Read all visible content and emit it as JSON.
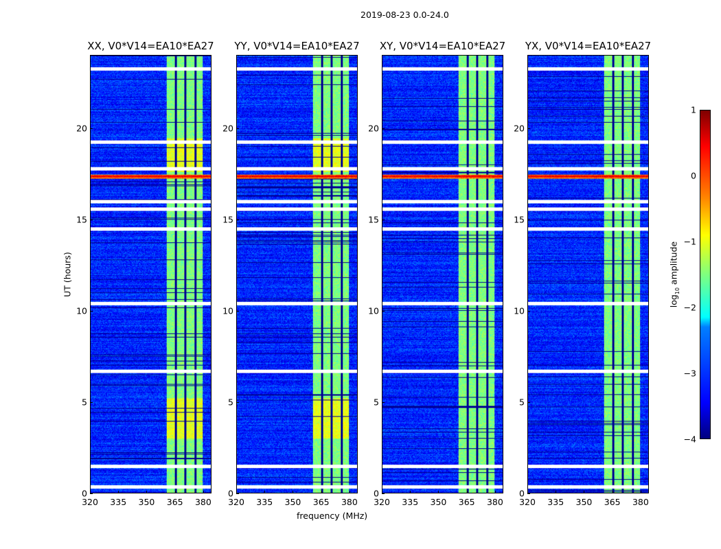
{
  "chart_data": {
    "type": "heatmap",
    "suptitle": "2019-08-23 0.0-24.0",
    "xlabel": "frequency (MHz)",
    "ylabel": "UT (hours)",
    "xlim": [
      320,
      384.4
    ],
    "ylim": [
      0,
      24
    ],
    "xticks": [
      "320",
      "335",
      "350",
      "365",
      "380"
    ],
    "yticks": [
      "0",
      "5",
      "10",
      "15",
      "20"
    ],
    "panels": [
      {
        "title": "XX, V0*V14=EA10*EA27"
      },
      {
        "title": "YY, V0*V14=EA10*EA27"
      },
      {
        "title": "XY, V0*V14=EA10*EA27"
      },
      {
        "title": "YX, V0*V14=EA10*EA27"
      }
    ],
    "colorbar": {
      "label": "log10 amplitude",
      "label_base": "log",
      "label_sub": "10",
      "label_rest": " amplitude",
      "range": [
        -4,
        1
      ],
      "ticks": [
        "1",
        "0",
        "−1",
        "−2",
        "−3",
        "−4"
      ],
      "colormap": "jet"
    },
    "background_level": -3.2,
    "rfi_band_mhz": [
      360.7,
      380
    ],
    "rfi_band_level": -1.5,
    "band_gap_channels_mhz": [
      365.5,
      370.6,
      376
    ],
    "flagged_hours": [
      0.33,
      1.45,
      6.7,
      10.4,
      14.5,
      15.6,
      16.0,
      17.8,
      19.25,
      23.3
    ],
    "bright_interval_hours": [
      17.25,
      17.5
    ]
  }
}
